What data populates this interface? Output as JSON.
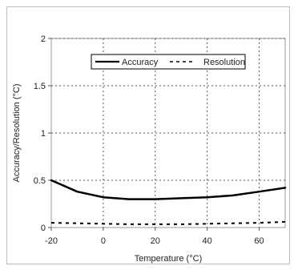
{
  "chart_data": {
    "type": "line",
    "xlabel": "Temperature (°C)",
    "ylabel": "Accuracy/Resolution (°C)",
    "xlim": [
      -20,
      70
    ],
    "ylim": [
      0,
      2
    ],
    "x_ticks": [
      -20,
      0,
      20,
      40,
      60
    ],
    "x_tick_labels": [
      "-20",
      "0",
      "20",
      "40",
      "60"
    ],
    "y_ticks": [
      0,
      0.5,
      1,
      1.5,
      2
    ],
    "y_tick_labels": [
      "0",
      "0.5",
      "1",
      "1.5",
      "2"
    ],
    "grid": true,
    "legend_position": "top-right",
    "series": [
      {
        "name": "Accuracy",
        "style": "solid",
        "color": "#000000",
        "x": [
          -20,
          -10,
          0,
          10,
          20,
          30,
          40,
          50,
          60,
          70
        ],
        "y": [
          0.5,
          0.38,
          0.32,
          0.3,
          0.3,
          0.31,
          0.32,
          0.34,
          0.38,
          0.42
        ]
      },
      {
        "name": "Resolution",
        "style": "dashed",
        "color": "#000000",
        "x": [
          -20,
          -10,
          0,
          10,
          20,
          30,
          40,
          50,
          60,
          70
        ],
        "y": [
          0.05,
          0.045,
          0.04,
          0.035,
          0.035,
          0.035,
          0.04,
          0.045,
          0.05,
          0.06
        ]
      }
    ]
  }
}
